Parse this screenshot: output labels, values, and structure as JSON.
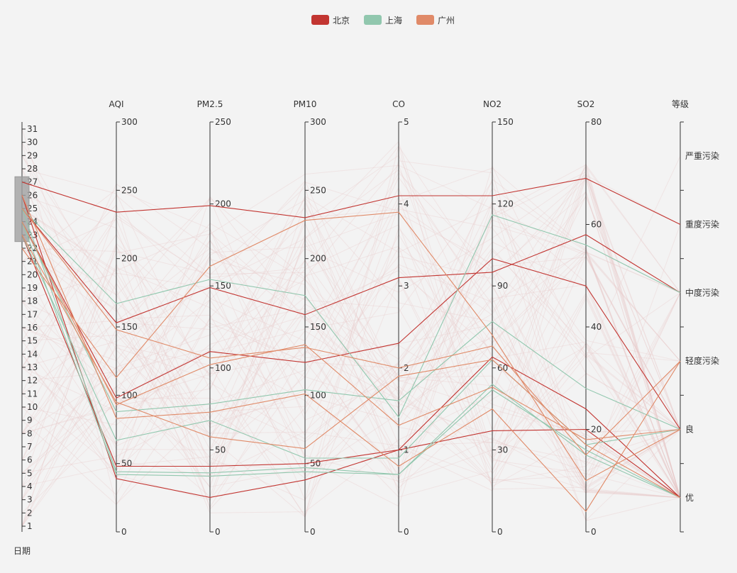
{
  "chart_data": {
    "type": "parallel",
    "axes": [
      {
        "name": "日期",
        "type": "value",
        "min": 1,
        "max": 31,
        "ticks": [
          1,
          2,
          3,
          4,
          5,
          6,
          7,
          8,
          9,
          10,
          11,
          12,
          13,
          14,
          15,
          16,
          17,
          18,
          19,
          20,
          21,
          22,
          23,
          24,
          25,
          26,
          27,
          28,
          29,
          30,
          31
        ],
        "brush_range": [
          22.5,
          27.4
        ]
      },
      {
        "name": "AQI",
        "type": "value",
        "min": 0,
        "max": 300,
        "ticks": [
          0,
          50,
          100,
          150,
          200,
          250,
          300
        ]
      },
      {
        "name": "PM2.5",
        "type": "value",
        "min": 0,
        "max": 250,
        "ticks": [
          0,
          50,
          100,
          150,
          200,
          250
        ]
      },
      {
        "name": "PM10",
        "type": "value",
        "min": 0,
        "max": 300,
        "ticks": [
          0,
          50,
          100,
          150,
          200,
          250,
          300
        ]
      },
      {
        "name": "CO",
        "type": "value",
        "min": 0,
        "max": 5,
        "ticks": [
          0,
          1,
          2,
          3,
          4,
          5
        ]
      },
      {
        "name": "NO2",
        "type": "value",
        "min": 0,
        "max": 150,
        "ticks": [
          0,
          30,
          60,
          90,
          120,
          150
        ]
      },
      {
        "name": "SO2",
        "type": "value",
        "min": 0,
        "max": 80,
        "ticks": [
          0,
          20,
          40,
          60,
          80
        ]
      },
      {
        "name": "等级",
        "type": "category",
        "categories": [
          "优",
          "良",
          "轻度污染",
          "中度污染",
          "重度污染",
          "严重污染"
        ]
      }
    ],
    "series": [
      {
        "name": "北京",
        "color": "#c23531",
        "lines": [
          [
            27,
            234,
            199,
            230,
            4.1,
            123,
            69,
            "重度污染"
          ],
          [
            25,
            153,
            149,
            159,
            3.1,
            95,
            58,
            "中度污染"
          ],
          [
            24,
            98,
            110,
            124,
            2.3,
            100,
            48,
            "良"
          ],
          [
            23,
            48,
            40,
            50,
            1.0,
            64,
            24,
            "优"
          ],
          [
            26,
            39,
            21,
            38,
            1.0,
            37,
            20,
            "优"
          ]
        ]
      },
      {
        "name": "上海",
        "color": "#91c7ae",
        "lines": [
          [
            25,
            167,
            154,
            173,
            1.4,
            116,
            56,
            "中度污染"
          ],
          [
            24,
            88,
            78,
            104,
            1.6,
            77,
            28,
            "良"
          ],
          [
            23,
            67,
            68,
            54,
            0.9,
            63,
            17,
            "良"
          ],
          [
            25,
            44,
            36,
            47,
            0.7,
            52,
            16,
            "优"
          ],
          [
            24,
            42,
            34,
            44,
            0.7,
            54,
            15,
            "优"
          ]
        ]
      },
      {
        "name": "广州",
        "color": "#e08a68",
        "lines": [
          [
            22,
            113,
            162,
            228,
            3.9,
            72,
            10,
            "良"
          ],
          [
            25,
            148,
            106,
            135,
            2.0,
            68,
            15,
            "轻度污染"
          ],
          [
            24,
            93,
            102,
            137,
            1.3,
            53,
            18,
            "良"
          ],
          [
            26,
            83,
            73,
            101,
            0.8,
            45,
            4,
            "轻度污染"
          ],
          [
            23,
            95,
            58,
            61,
            1.9,
            63,
            17,
            "优"
          ]
        ]
      }
    ],
    "legend": {
      "position": "top-center",
      "items": [
        "北京",
        "上海",
        "广州"
      ]
    },
    "background_lines_color": "#e8c8c8"
  }
}
